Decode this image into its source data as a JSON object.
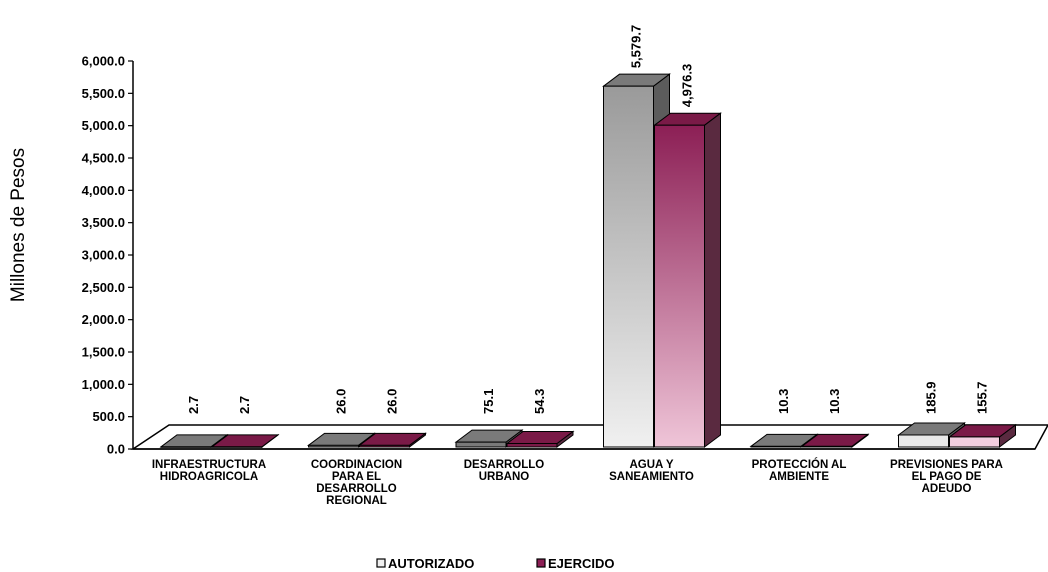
{
  "chart_data": {
    "type": "bar",
    "categories": [
      [
        "INFRAESTRUCTURA",
        "HIDROAGRICOLA"
      ],
      [
        "COORDINACION",
        "PARA EL",
        "DESARROLLO",
        "REGIONAL"
      ],
      [
        "DESARROLLO",
        "URBANO"
      ],
      [
        "AGUA Y",
        "SANEAMIENTO"
      ],
      [
        "PROTECCIÓN AL",
        "AMBIENTE"
      ],
      [
        "PREVISIONES PARA",
        "EL PAGO DE",
        "ADEUDO"
      ]
    ],
    "series": [
      {
        "name": "AUTORIZADO",
        "values": [
          2.7,
          26.0,
          75.1,
          5579.7,
          10.3,
          185.9
        ],
        "labels": [
          "2.7",
          "26.0",
          "75.1",
          "5,579.7",
          "10.3",
          "185.9"
        ]
      },
      {
        "name": "EJERCIDO",
        "values": [
          2.7,
          26.0,
          54.3,
          4976.3,
          10.3,
          155.7
        ],
        "labels": [
          "2.7",
          "26.0",
          "54.3",
          "4,976.3",
          "10.3",
          "155.7"
        ]
      }
    ],
    "ylabel": "Millones de Pesos",
    "xlabel": "",
    "ylim": [
      0,
      6000
    ],
    "yticks": [
      0,
      500,
      1000,
      1500,
      2000,
      2500,
      3000,
      3500,
      4000,
      4500,
      5000,
      5500,
      6000
    ],
    "ytick_labels": [
      "0.0",
      "500.0",
      "1,000.0",
      "1,500.0",
      "2,000.0",
      "2,500.0",
      "3,000.0",
      "3,500.0",
      "4,000.0",
      "4,500.0",
      "5,000.0",
      "5,500.0",
      "6,000.0"
    ],
    "legend_position": "bottom",
    "grid": false,
    "colors": {
      "autorizado_front_top": "#9a9a9a",
      "autorizado_front_bottom": "#f0f0f0",
      "autorizado_top": "#7a7a7a",
      "autorizado_side": "#5c5c5c",
      "ejercido_front_top": "#8c1f55",
      "ejercido_front_bottom": "#efc5d8",
      "ejercido_top": "#7a1a47",
      "ejercido_side": "#5a2a40"
    }
  }
}
